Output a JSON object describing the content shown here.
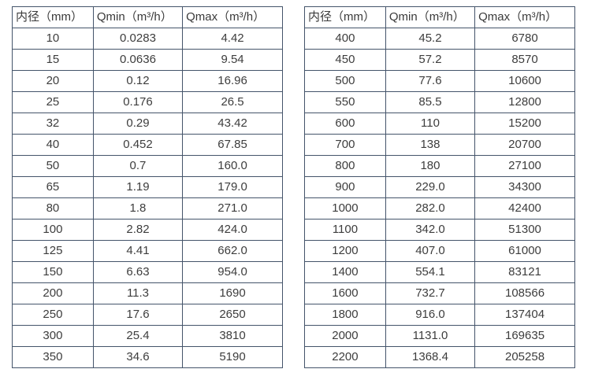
{
  "page": {
    "background": "#ffffff",
    "border_color": "#44546a",
    "text_color": "#3d3d3d"
  },
  "tables": [
    {
      "name": "flow-table-left",
      "headers": [
        "内径（mm）",
        "Qmin（m³/h）",
        "Qmax（m³/h）"
      ],
      "rows": [
        [
          "10",
          "0.0283",
          "4.42"
        ],
        [
          "15",
          "0.0636",
          "9.54"
        ],
        [
          "20",
          "0.12",
          "16.96"
        ],
        [
          "25",
          "0.176",
          "26.5"
        ],
        [
          "32",
          "0.29",
          "43.42"
        ],
        [
          "40",
          "0.452",
          "67.85"
        ],
        [
          "50",
          "0.7",
          "160.0"
        ],
        [
          "65",
          "1.19",
          "179.0"
        ],
        [
          "80",
          "1.8",
          "271.0"
        ],
        [
          "100",
          "2.82",
          "424.0"
        ],
        [
          "125",
          "4.41",
          "662.0"
        ],
        [
          "150",
          "6.63",
          "954.0"
        ],
        [
          "200",
          "11.3",
          "1690"
        ],
        [
          "250",
          "17.6",
          "2650"
        ],
        [
          "300",
          "25.4",
          "3810"
        ],
        [
          "350",
          "34.6",
          "5190"
        ]
      ]
    },
    {
      "name": "flow-table-right",
      "headers": [
        "内径（mm）",
        "Qmin（m³/h）",
        "Qmax（m³/h）"
      ],
      "rows": [
        [
          "400",
          "45.2",
          "6780"
        ],
        [
          "450",
          "57.2",
          "8570"
        ],
        [
          "500",
          "77.6",
          "10600"
        ],
        [
          "550",
          "85.5",
          "12800"
        ],
        [
          "600",
          "110",
          "15200"
        ],
        [
          "700",
          "138",
          "20700"
        ],
        [
          "800",
          "180",
          "27100"
        ],
        [
          "900",
          "229.0",
          "34300"
        ],
        [
          "1000",
          "282.0",
          "42400"
        ],
        [
          "1100",
          "342.0",
          "51300"
        ],
        [
          "1200",
          "407.0",
          "61000"
        ],
        [
          "1400",
          "554.1",
          "83121"
        ],
        [
          "1600",
          "732.7",
          "108566"
        ],
        [
          "1800",
          "916.0",
          "137404"
        ],
        [
          "2000",
          "1131.0",
          "169635"
        ],
        [
          "2200",
          "1368.4",
          "205258"
        ]
      ]
    }
  ]
}
